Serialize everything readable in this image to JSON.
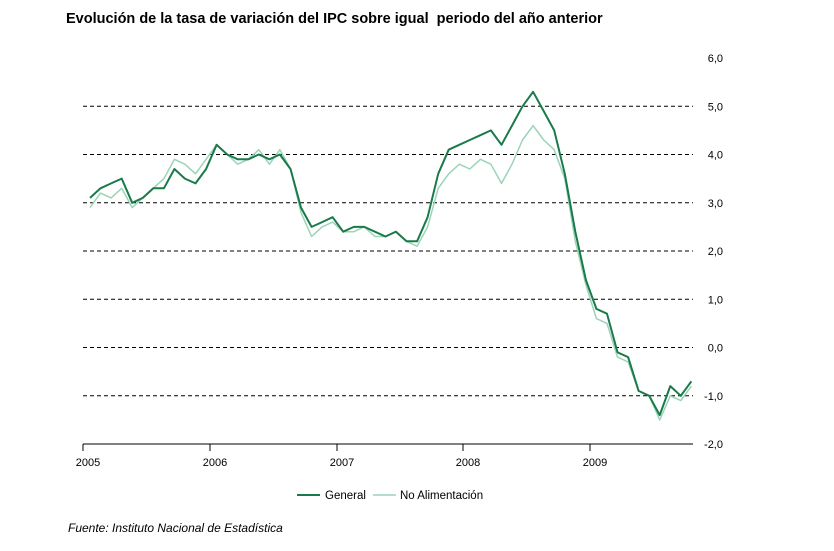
{
  "chart_data": {
    "type": "line",
    "title": "Evolución de la tasa de variación del IPC sobre igual  periodo del año anterior",
    "source": "Fuente: Instituto Nacional de Estadística",
    "ylim": [
      -2.0,
      6.0
    ],
    "y_ticks": [
      "6,0",
      "5,0",
      "4,0",
      "3,0",
      "2,0",
      "1,0",
      "0,0",
      "-1,0",
      "-2,0"
    ],
    "year_labels": [
      "2005",
      "2006",
      "2007",
      "2008",
      "2009"
    ],
    "x": [
      "2005-01",
      "2005-02",
      "2005-03",
      "2005-04",
      "2005-05",
      "2005-06",
      "2005-07",
      "2005-08",
      "2005-09",
      "2005-10",
      "2005-11",
      "2005-12",
      "2006-01",
      "2006-02",
      "2006-03",
      "2006-04",
      "2006-05",
      "2006-06",
      "2006-07",
      "2006-08",
      "2006-09",
      "2006-10",
      "2006-11",
      "2006-12",
      "2007-01",
      "2007-02",
      "2007-03",
      "2007-04",
      "2007-05",
      "2007-06",
      "2007-07",
      "2007-08",
      "2007-09",
      "2007-10",
      "2007-11",
      "2007-12",
      "2008-01",
      "2008-02",
      "2008-03",
      "2008-04",
      "2008-05",
      "2008-06",
      "2008-07",
      "2008-08",
      "2008-09",
      "2008-10",
      "2008-11",
      "2008-12",
      "2009-01",
      "2009-02",
      "2009-03",
      "2009-04",
      "2009-05",
      "2009-06",
      "2009-07",
      "2009-08",
      "2009-09",
      "2009-10"
    ],
    "grid": "dashed-horizontal",
    "legend_position": "bottom-center",
    "series": [
      {
        "name": "General",
        "color": "#1a7a4a",
        "values": [
          3.1,
          3.3,
          3.4,
          3.5,
          3.0,
          3.1,
          3.3,
          3.3,
          3.7,
          3.5,
          3.4,
          3.7,
          4.2,
          4.0,
          3.9,
          3.9,
          4.0,
          3.9,
          4.0,
          3.7,
          2.9,
          2.5,
          2.6,
          2.7,
          2.4,
          2.5,
          2.5,
          2.4,
          2.3,
          2.4,
          2.2,
          2.2,
          2.7,
          3.6,
          4.1,
          4.2,
          4.3,
          4.4,
          4.5,
          4.2,
          4.6,
          5.0,
          5.3,
          4.9,
          4.5,
          3.6,
          2.4,
          1.4,
          0.8,
          0.7,
          -0.1,
          -0.2,
          -0.9,
          -1.0,
          -1.4,
          -0.8,
          -1.0,
          -0.7
        ]
      },
      {
        "name": "No Alimentación",
        "color": "#9bd4b8",
        "values": [
          2.9,
          3.2,
          3.1,
          3.3,
          2.9,
          3.1,
          3.3,
          3.5,
          3.9,
          3.8,
          3.6,
          3.9,
          4.2,
          4.0,
          3.8,
          3.9,
          4.1,
          3.8,
          4.1,
          3.7,
          2.8,
          2.3,
          2.5,
          2.6,
          2.4,
          2.4,
          2.5,
          2.3,
          2.3,
          2.4,
          2.2,
          2.1,
          2.5,
          3.3,
          3.6,
          3.8,
          3.7,
          3.9,
          3.8,
          3.4,
          3.8,
          4.3,
          4.6,
          4.3,
          4.1,
          3.5,
          2.2,
          1.3,
          0.6,
          0.5,
          -0.2,
          -0.3,
          -0.9,
          -1.0,
          -1.5,
          -1.0,
          -1.1,
          -0.8
        ]
      }
    ]
  }
}
